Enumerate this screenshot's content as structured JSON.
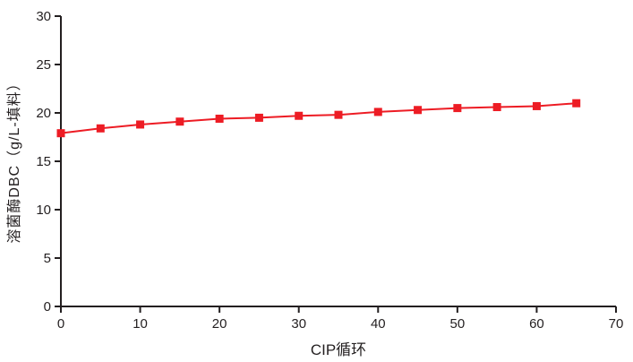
{
  "chart_data": {
    "type": "line",
    "title": "",
    "xlabel": "CIP循环",
    "ylabel": "溶菌酶DBC（g/L-填料）",
    "x": [
      0,
      5,
      10,
      15,
      20,
      25,
      30,
      35,
      40,
      45,
      50,
      55,
      60,
      65
    ],
    "series": [
      {
        "name": "溶菌酶DBC",
        "marker": "square",
        "color": "#ed1c24",
        "values": [
          17.9,
          18.4,
          18.8,
          19.1,
          19.4,
          19.5,
          19.7,
          19.8,
          20.1,
          20.3,
          20.5,
          20.6,
          20.7,
          21.0
        ]
      }
    ],
    "xlim": [
      0,
      70
    ],
    "ylim": [
      0,
      30
    ],
    "xticks": [
      0,
      10,
      20,
      30,
      40,
      50,
      60,
      70
    ],
    "yticks": [
      0,
      5,
      10,
      15,
      20,
      25,
      30
    ],
    "grid": false,
    "legend_position": "none",
    "axis_color": "#231f20"
  }
}
